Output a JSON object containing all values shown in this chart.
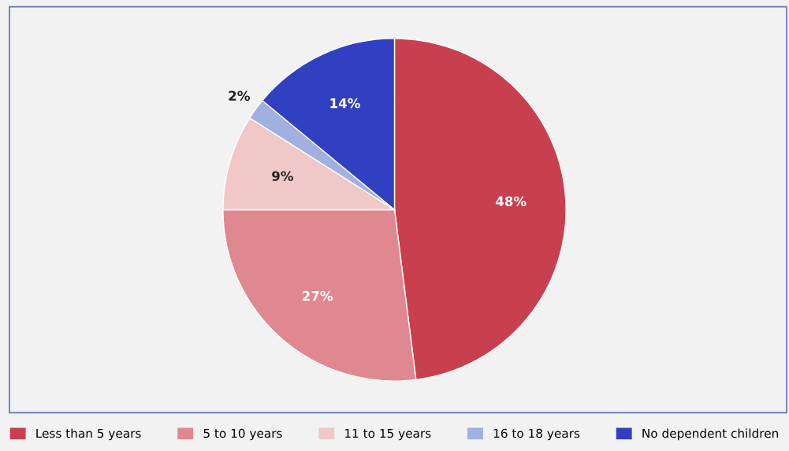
{
  "chart_data": {
    "type": "pie",
    "categories": [
      "Less than 5 years",
      "5 to 10 years",
      "11 to 15 years",
      "16 to 18 years",
      "No dependent children"
    ],
    "values": [
      48,
      27,
      9,
      2,
      14
    ],
    "colors": [
      "#c8404f",
      "#e08890",
      "#f0c8c8",
      "#a0b0e0",
      "#3040c0"
    ],
    "value_labels": [
      "48%",
      "27%",
      "9%",
      "2%",
      "14%"
    ],
    "legend": "bottom"
  }
}
